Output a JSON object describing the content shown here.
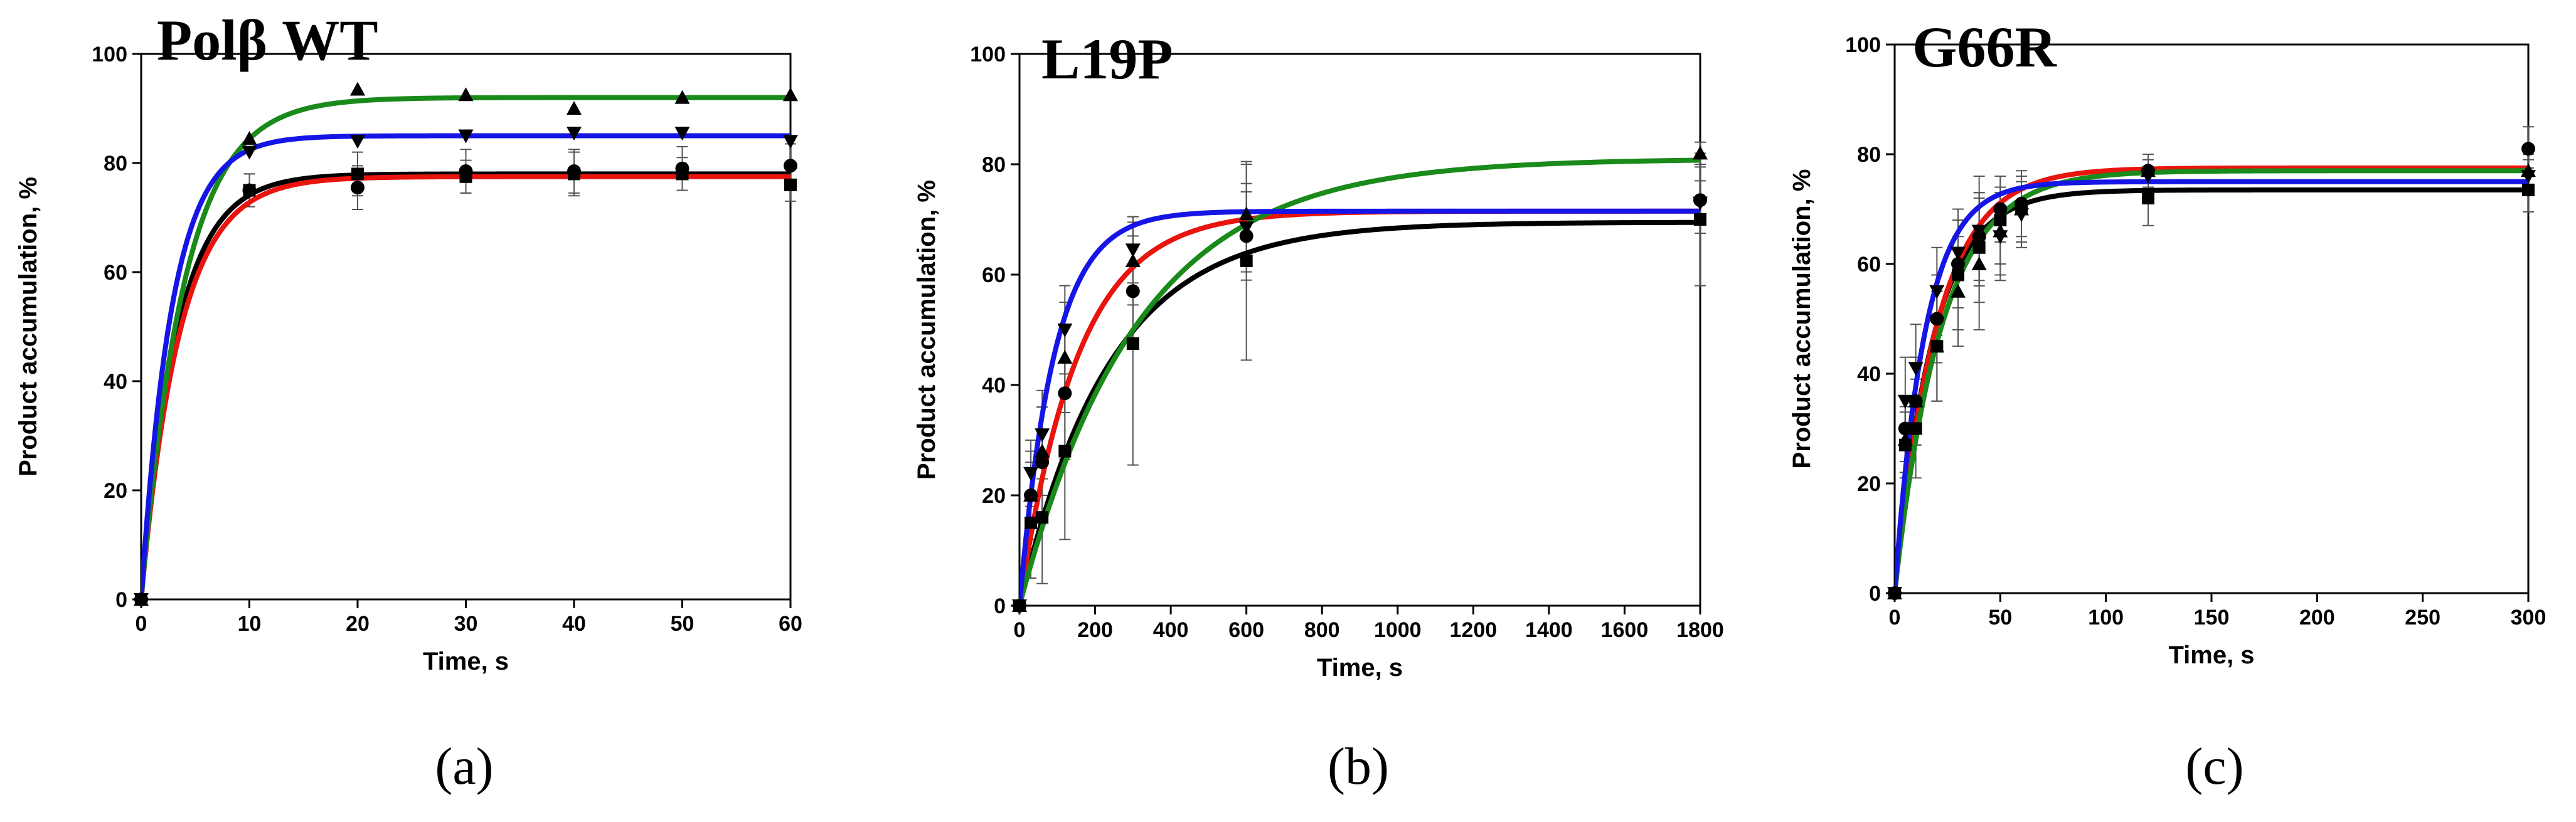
{
  "figure": {
    "colors": {
      "black": "#000000",
      "red": "#e8140d",
      "green": "#1a8a1a",
      "blue": "#1515e6"
    },
    "panels": [
      {
        "title": "Polβ WT",
        "caption": "(a)",
        "xlabel": "Time, s",
        "ylabel": "Product accumulation, %",
        "xlim": [
          0,
          60
        ],
        "ylim": [
          0,
          100
        ],
        "xticks": [
          0,
          10,
          20,
          30,
          40,
          50,
          60
        ],
        "yticks": [
          0,
          20,
          40,
          60,
          80,
          100
        ],
        "series": [
          {
            "name": "square",
            "marker": "square",
            "color": "#000000",
            "x": [
              0,
              10,
              20,
              30,
              40,
              50,
              60
            ],
            "y": [
              0,
              75,
              78,
              77.5,
              78,
              78,
              76
            ],
            "err": [
              0,
              3,
              4,
              3,
              4,
              3,
              3
            ],
            "fit": {
              "A": 78,
              "k": 0.3
            }
          },
          {
            "name": "circle",
            "marker": "circle",
            "color": "#000000",
            "x": [
              0,
              10,
              20,
              30,
              40,
              50,
              60
            ],
            "y": [
              0,
              75,
              75.5,
              78.5,
              78.5,
              79,
              79.5
            ],
            "err": [
              0,
              3,
              4,
              4,
              4,
              4,
              4
            ],
            "fit": {
              "A": 77.5,
              "k": 0.28
            }
          },
          {
            "name": "triangle-up",
            "marker": "triangle-up",
            "color": "#000000",
            "x": [
              0,
              10,
              20,
              30,
              40,
              50,
              60
            ],
            "y": [
              0,
              84.5,
              93.5,
              92.5,
              90,
              92,
              92.5
            ],
            "err": [
              0,
              0,
              0,
              0,
              0,
              0,
              0
            ],
            "fit": {
              "A": 92,
              "k": 0.25
            }
          },
          {
            "name": "triangle-down",
            "marker": "triangle-down",
            "color": "#000000",
            "x": [
              0,
              10,
              20,
              30,
              40,
              50,
              60
            ],
            "y": [
              0,
              82,
              84,
              85,
              85.5,
              85.5,
              84
            ],
            "err": [
              0,
              0,
              0,
              0,
              0,
              0,
              0
            ],
            "fit": {
              "A": 85,
              "k": 0.35
            }
          }
        ]
      },
      {
        "title": "L19P",
        "caption": "(b)",
        "xlabel": "Time, s",
        "ylabel": "Product accumulation, %",
        "xlim": [
          0,
          1800
        ],
        "ylim": [
          0,
          100
        ],
        "xticks": [
          0,
          200,
          400,
          600,
          800,
          1000,
          1200,
          1400,
          1600,
          1800
        ],
        "yticks": [
          0,
          20,
          40,
          60,
          80,
          100
        ],
        "series": [
          {
            "name": "square",
            "marker": "square",
            "color": "#000000",
            "x": [
              0,
              30,
              60,
              120,
              300,
              600,
              1800
            ],
            "y": [
              0,
              15,
              16,
              28,
              47.5,
              62.5,
              70
            ],
            "err": [
              0,
              10,
              12,
              16,
              22,
              18,
              12
            ],
            "fit": {
              "A": 69.5,
              "k": 0.0042
            }
          },
          {
            "name": "circle",
            "marker": "circle",
            "color": "#000000",
            "x": [
              0,
              30,
              60,
              120,
              300,
              600,
              1800
            ],
            "y": [
              0,
              20,
              26,
              38.5,
              57,
              67,
              73.5
            ],
            "err": [
              0,
              8,
              10,
              12,
              10,
              8,
              6
            ],
            "fit": {
              "A": 71.5,
              "k": 0.0065
            }
          },
          {
            "name": "triangle-up",
            "marker": "triangle-up",
            "color": "#000000",
            "x": [
              0,
              30,
              60,
              120,
              300,
              600,
              1800
            ],
            "y": [
              0,
              20,
              28,
              45,
              62.5,
              71,
              82
            ],
            "err": [
              0,
              6,
              8,
              10,
              8,
              9,
              2
            ],
            "fit": {
              "A": 81,
              "k": 0.0032
            }
          },
          {
            "name": "triangle-down",
            "marker": "triangle-down",
            "color": "#000000",
            "x": [
              0,
              30,
              60,
              120,
              300,
              600,
              1800
            ],
            "y": [
              0,
              24,
              31,
              50,
              64.5,
              68.5,
              73
            ],
            "err": [
              0,
              6,
              8,
              8,
              6,
              8,
              4
            ],
            "fit": {
              "A": 71.5,
              "k": 0.011
            }
          }
        ]
      },
      {
        "title": "G66R",
        "caption": "(c)",
        "xlabel": "Time, s",
        "ylabel": "Product accumulation, %",
        "xlim": [
          0,
          300
        ],
        "ylim": [
          0,
          100
        ],
        "xticks": [
          0,
          50,
          100,
          150,
          200,
          250,
          300
        ],
        "yticks": [
          0,
          20,
          40,
          60,
          80,
          100
        ],
        "series": [
          {
            "name": "square",
            "marker": "square",
            "color": "#000000",
            "x": [
              0,
              5,
              10,
              20,
              30,
              40,
              50,
              60,
              120,
              300
            ],
            "y": [
              0,
              27,
              30,
              45,
              58,
              63,
              68,
              70,
              72,
              73.5
            ],
            "err": [
              0,
              6,
              9,
              10,
              10,
              10,
              8,
              6,
              5,
              4
            ],
            "fit": {
              "A": 73.5,
              "k": 0.055
            }
          },
          {
            "name": "circle",
            "marker": "circle",
            "color": "#000000",
            "x": [
              0,
              5,
              10,
              20,
              30,
              40,
              50,
              60,
              120,
              300
            ],
            "y": [
              0,
              30,
              35,
              50,
              60,
              65,
              70,
              71,
              77,
              81
            ],
            "err": [
              0,
              6,
              8,
              8,
              8,
              8,
              6,
              6,
              3,
              4
            ],
            "fit": {
              "A": 77.5,
              "k": 0.05
            }
          },
          {
            "name": "triangle-up",
            "marker": "triangle-up",
            "color": "#000000",
            "x": [
              0,
              5,
              10,
              20,
              30,
              40,
              50,
              60,
              120,
              300
            ],
            "y": [
              0,
              28,
              35,
              45,
              55,
              60,
              66,
              70,
              77,
              77
            ],
            "err": [
              0,
              6,
              8,
              10,
              10,
              12,
              8,
              6,
              3,
              3
            ],
            "fit": {
              "A": 77,
              "k": 0.045
            }
          },
          {
            "name": "triangle-down",
            "marker": "triangle-down",
            "color": "#000000",
            "x": [
              0,
              5,
              10,
              20,
              30,
              40,
              50,
              60,
              120,
              300
            ],
            "y": [
              0,
              35,
              41,
              55,
              62,
              66,
              65,
              69,
              76,
              76
            ],
            "err": [
              0,
              8,
              8,
              8,
              8,
              10,
              8,
              6,
              3,
              3
            ],
            "fit": {
              "A": 75,
              "k": 0.07
            }
          }
        ]
      }
    ],
    "fit_colors": [
      "#000000",
      "#e8140d",
      "#1a8a1a",
      "#1515e6"
    ]
  },
  "chart_data": [
    {
      "type": "scatter",
      "title": "Polβ WT",
      "xlabel": "Time, s",
      "ylabel": "Product accumulation, %",
      "xlim": [
        0,
        60
      ],
      "ylim": [
        0,
        100
      ],
      "series": [
        {
          "name": "square (black fit)",
          "x": [
            0,
            10,
            20,
            30,
            40,
            50,
            60
          ],
          "values": [
            0,
            75,
            78,
            77.5,
            78,
            78,
            76
          ]
        },
        {
          "name": "circle (red fit)",
          "x": [
            0,
            10,
            20,
            30,
            40,
            50,
            60
          ],
          "values": [
            0,
            75,
            75.5,
            78.5,
            78.5,
            79,
            79.5
          ]
        },
        {
          "name": "triangle-up (green fit)",
          "x": [
            0,
            10,
            20,
            30,
            40,
            50,
            60
          ],
          "values": [
            0,
            84.5,
            93.5,
            92.5,
            90,
            92,
            92.5
          ]
        },
        {
          "name": "triangle-down (blue fit)",
          "x": [
            0,
            10,
            20,
            30,
            40,
            50,
            60
          ],
          "values": [
            0,
            82,
            84,
            85,
            85.5,
            85.5,
            84
          ]
        }
      ]
    },
    {
      "type": "scatter",
      "title": "L19P",
      "xlabel": "Time, s",
      "ylabel": "Product accumulation, %",
      "xlim": [
        0,
        1800
      ],
      "ylim": [
        0,
        100
      ],
      "series": [
        {
          "name": "square (black fit)",
          "x": [
            0,
            30,
            60,
            120,
            300,
            600,
            1800
          ],
          "values": [
            0,
            15,
            16,
            28,
            47.5,
            62.5,
            70
          ]
        },
        {
          "name": "circle (red fit)",
          "x": [
            0,
            30,
            60,
            120,
            300,
            600,
            1800
          ],
          "values": [
            0,
            20,
            26,
            38.5,
            57,
            67,
            73.5
          ]
        },
        {
          "name": "triangle-up (green fit)",
          "x": [
            0,
            30,
            60,
            120,
            300,
            600,
            1800
          ],
          "values": [
            0,
            20,
            28,
            45,
            62.5,
            71,
            82
          ]
        },
        {
          "name": "triangle-down (blue fit)",
          "x": [
            0,
            30,
            60,
            120,
            300,
            600,
            1800
          ],
          "values": [
            0,
            24,
            31,
            50,
            64.5,
            68.5,
            73
          ]
        }
      ]
    },
    {
      "type": "scatter",
      "title": "G66R",
      "xlabel": "Time, s",
      "ylabel": "Product accumulation, %",
      "xlim": [
        0,
        300
      ],
      "ylim": [
        0,
        100
      ],
      "series": [
        {
          "name": "square (black fit)",
          "x": [
            0,
            5,
            10,
            20,
            30,
            40,
            50,
            60,
            120,
            300
          ],
          "values": [
            0,
            27,
            30,
            45,
            58,
            63,
            68,
            70,
            72,
            73.5
          ]
        },
        {
          "name": "circle (red fit)",
          "x": [
            0,
            5,
            10,
            20,
            30,
            40,
            50,
            60,
            120,
            300
          ],
          "values": [
            0,
            30,
            35,
            50,
            60,
            65,
            70,
            71,
            77,
            81
          ]
        },
        {
          "name": "triangle-up (green fit)",
          "x": [
            0,
            5,
            10,
            20,
            30,
            40,
            50,
            60,
            120,
            300
          ],
          "values": [
            0,
            28,
            35,
            45,
            55,
            60,
            66,
            70,
            77,
            77
          ]
        },
        {
          "name": "triangle-down (blue fit)",
          "x": [
            0,
            5,
            10,
            20,
            30,
            40,
            50,
            60,
            120,
            300
          ],
          "values": [
            0,
            35,
            41,
            55,
            62,
            66,
            65,
            69,
            76,
            76
          ]
        }
      ]
    }
  ]
}
